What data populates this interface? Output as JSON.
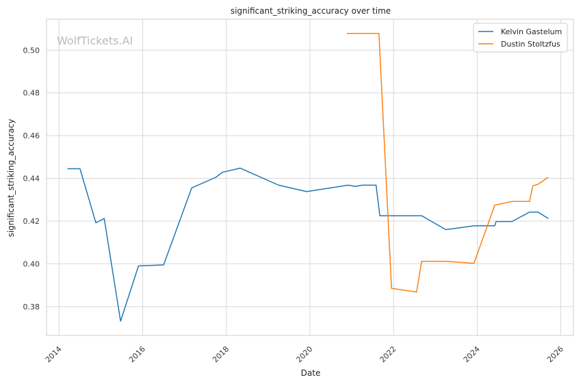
{
  "chart_data": {
    "type": "line",
    "title": "significant_striking_accuracy over time",
    "xlabel": "Date",
    "ylabel": "significant_striking_accuracy",
    "watermark": "WolfTickets.AI",
    "xlim": [
      2013.7,
      2026.3
    ],
    "ylim": [
      0.3665,
      0.5145
    ],
    "xticks": [
      2014,
      2016,
      2018,
      2020,
      2022,
      2024,
      2026
    ],
    "xtick_labels": [
      "2014",
      "2016",
      "2018",
      "2020",
      "2022",
      "2024",
      "2026"
    ],
    "yticks": [
      0.38,
      0.4,
      0.42,
      0.44,
      0.46,
      0.48,
      0.5
    ],
    "ytick_labels": [
      "0.38",
      "0.40",
      "0.42",
      "0.44",
      "0.46",
      "0.48",
      "0.50"
    ],
    "grid": true,
    "legend_position": "top-right",
    "series": [
      {
        "name": "Kelvin Gastelum",
        "color": "#1f77b4",
        "x": [
          2014.2,
          2014.5,
          2014.88,
          2015.08,
          2015.47,
          2015.9,
          2016.5,
          2017.17,
          2017.75,
          2017.9,
          2018.33,
          2019.25,
          2019.92,
          2020.25,
          2020.92,
          2021.08,
          2021.25,
          2021.58,
          2021.67,
          2022.67,
          2023.25,
          2023.92,
          2024.42,
          2024.45,
          2024.83,
          2025.25,
          2025.45,
          2025.7
        ],
        "y": [
          0.4445,
          0.4445,
          0.4192,
          0.4212,
          0.3732,
          0.399,
          0.3995,
          0.4355,
          0.4405,
          0.4428,
          0.4448,
          0.4368,
          0.4338,
          0.4348,
          0.4368,
          0.4362,
          0.4368,
          0.4368,
          0.4225,
          0.4225,
          0.416,
          0.4178,
          0.4178,
          0.4198,
          0.4198,
          0.4242,
          0.4242,
          0.4212
        ]
      },
      {
        "name": "Dustin Stoltzfus",
        "color": "#ff7f0e",
        "x": [
          2020.88,
          2021.65,
          2021.95,
          2022.55,
          2022.67,
          2023.25,
          2023.92,
          2024.42,
          2024.83,
          2025.25,
          2025.33,
          2025.45,
          2025.7
        ],
        "y": [
          0.5078,
          0.5078,
          0.3885,
          0.3868,
          0.4012,
          0.4012,
          0.4002,
          0.4275,
          0.4292,
          0.4292,
          0.4365,
          0.4372,
          0.4405
        ]
      }
    ]
  }
}
